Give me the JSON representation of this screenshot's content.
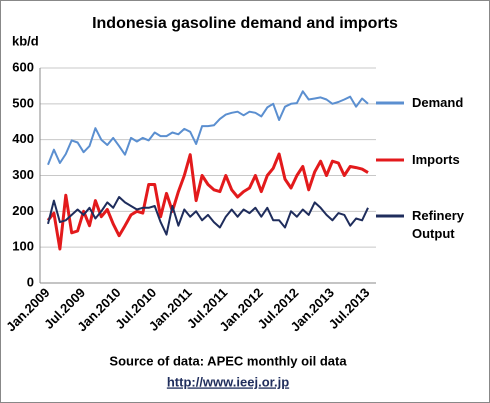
{
  "chart_data": {
    "type": "line",
    "title": "Indonesia gasoline demand and imports",
    "y_label": "kb/d",
    "source": "Source of data: APEC monthly oil data",
    "url": "http://www.ieej.or.jp",
    "categories": [
      "Jan.2009",
      null,
      null,
      null,
      null,
      null,
      "Jul.2009",
      null,
      null,
      null,
      null,
      null,
      "Jan.2010",
      null,
      null,
      null,
      null,
      null,
      "Jul.2010",
      null,
      null,
      null,
      null,
      null,
      "Jan.2011",
      null,
      null,
      null,
      null,
      null,
      "Jul.2011",
      null,
      null,
      null,
      null,
      null,
      "Jan.2012",
      null,
      null,
      null,
      null,
      null,
      "Jul.2012",
      null,
      null,
      null,
      null,
      null,
      "Jan.2013",
      null,
      null,
      null,
      null,
      null,
      "Jul.2013"
    ],
    "series": [
      {
        "name": "Demand",
        "color": "#5b8fd0",
        "values": [
          330,
          372,
          335,
          360,
          398,
          392,
          365,
          382,
          432,
          400,
          385,
          405,
          382,
          358,
          405,
          395,
          405,
          398,
          420,
          410,
          410,
          420,
          415,
          430,
          422,
          388,
          438,
          438,
          440,
          458,
          470,
          475,
          478,
          468,
          478,
          475,
          465,
          490,
          500,
          455,
          492,
          500,
          502,
          535,
          512,
          515,
          518,
          512,
          500,
          505,
          512,
          520,
          492,
          515,
          500
        ]
      },
      {
        "name": "Imports",
        "color": "#e31a1c",
        "values": [
          175,
          195,
          95,
          245,
          140,
          145,
          200,
          160,
          230,
          185,
          205,
          165,
          132,
          160,
          190,
          200,
          195,
          275,
          275,
          185,
          250,
          200,
          255,
          300,
          358,
          230,
          300,
          275,
          260,
          255,
          300,
          260,
          240,
          255,
          265,
          300,
          255,
          300,
          320,
          360,
          290,
          265,
          300,
          325,
          260,
          310,
          340,
          300,
          340,
          335,
          300,
          325,
          322,
          318,
          308
        ]
      },
      {
        "name": "Refinery Output",
        "color": "#1f2d5c",
        "values": [
          165,
          230,
          170,
          175,
          190,
          205,
          190,
          210,
          180,
          200,
          225,
          210,
          240,
          225,
          215,
          205,
          210,
          210,
          215,
          170,
          135,
          215,
          160,
          205,
          185,
          200,
          175,
          190,
          170,
          155,
          185,
          205,
          185,
          205,
          195,
          210,
          185,
          210,
          175,
          175,
          155,
          200,
          185,
          205,
          190,
          225,
          210,
          190,
          175,
          195,
          190,
          160,
          180,
          175,
          210
        ]
      }
    ],
    "ylim": [
      0,
      600
    ],
    "yticks": [
      0,
      100,
      200,
      300,
      400,
      500,
      600
    ],
    "grid": true
  }
}
